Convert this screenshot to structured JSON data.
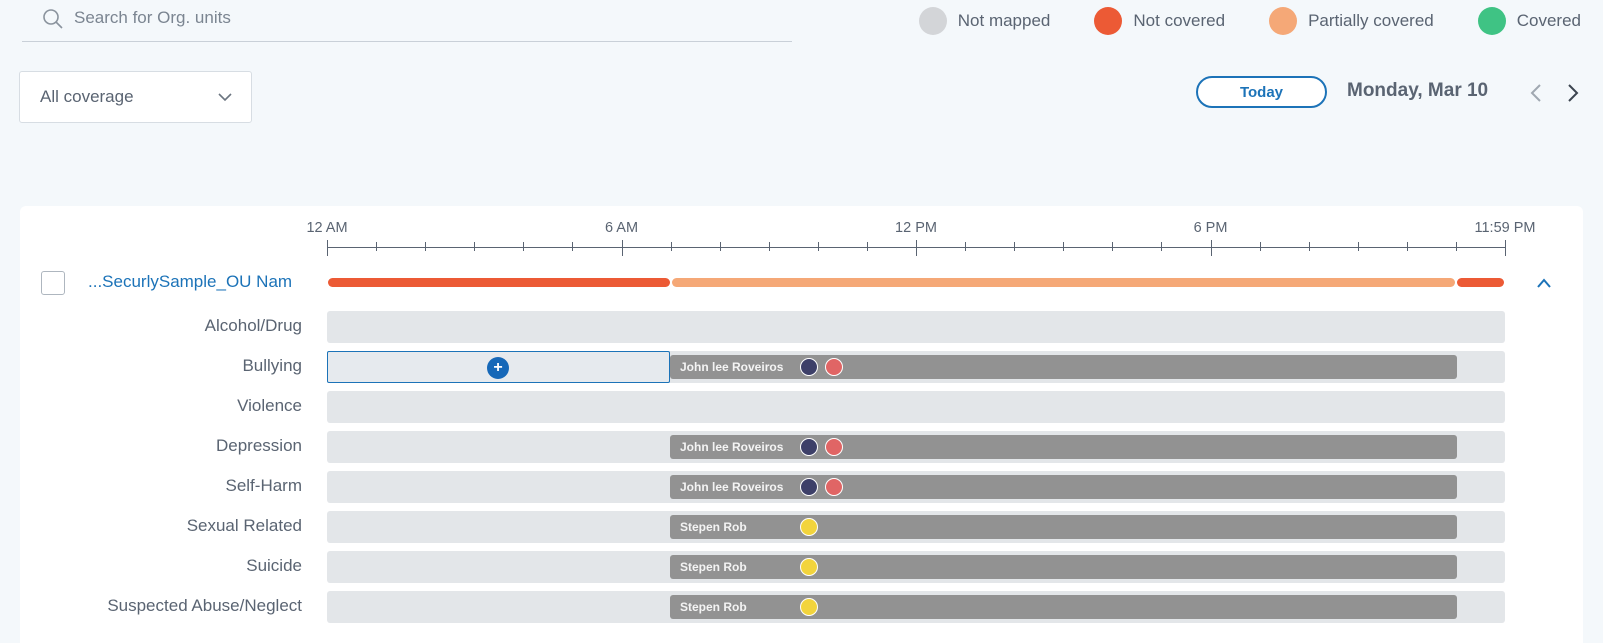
{
  "search": {
    "placeholder": "Search for Org. units",
    "value": ""
  },
  "legend": [
    {
      "label": "Not mapped",
      "color": "#d3d5d8"
    },
    {
      "label": "Not covered",
      "color": "#ec5a35"
    },
    {
      "label": "Partially covered",
      "color": "#f5a877"
    },
    {
      "label": "Covered",
      "color": "#3fc384"
    }
  ],
  "filter": {
    "value": "All coverage"
  },
  "date_nav": {
    "today_label": "Today",
    "date": "Monday, Mar 10"
  },
  "timeline": {
    "labels": [
      "12 AM",
      "6 AM",
      "12 PM",
      "6 PM",
      "11:59 PM"
    ]
  },
  "ou": {
    "name": "...SecurlySample_OU Nam",
    "coverage": [
      {
        "status": "Not covered",
        "color": "#ec5a35",
        "start_hour": 0,
        "end_hour": 7
      },
      {
        "status": "Partially covered",
        "color": "#f5a877",
        "start_hour": 7,
        "end_hour": 23
      },
      {
        "status": "Not covered",
        "color": "#ec5a35",
        "start_hour": 23,
        "end_hour": 24
      }
    ]
  },
  "categories": [
    {
      "label": "Alcohol/Drug",
      "assignment": null
    },
    {
      "label": "Bullying",
      "add_slot": true,
      "assignment": {
        "name": "John lee Roveiros",
        "dots": [
          "#3d3f68",
          "#e06565"
        ]
      }
    },
    {
      "label": "Violence",
      "assignment": null
    },
    {
      "label": "Depression",
      "assignment": {
        "name": "John lee Roveiros",
        "dots": [
          "#3d3f68",
          "#e06565"
        ]
      }
    },
    {
      "label": "Self-Harm",
      "assignment": {
        "name": "John lee Roveiros",
        "dots": [
          "#3d3f68",
          "#e06565"
        ]
      }
    },
    {
      "label": "Sexual Related",
      "assignment": {
        "name": "Stepen Rob",
        "dots": [
          "#f2d43d"
        ]
      }
    },
    {
      "label": "Suicide",
      "assignment": {
        "name": "Stepen Rob",
        "dots": [
          "#f2d43d"
        ]
      }
    },
    {
      "label": "Suspected Abuse/Neglect",
      "assignment": {
        "name": "Stepen Rob",
        "dots": [
          "#f2d43d"
        ]
      }
    }
  ]
}
